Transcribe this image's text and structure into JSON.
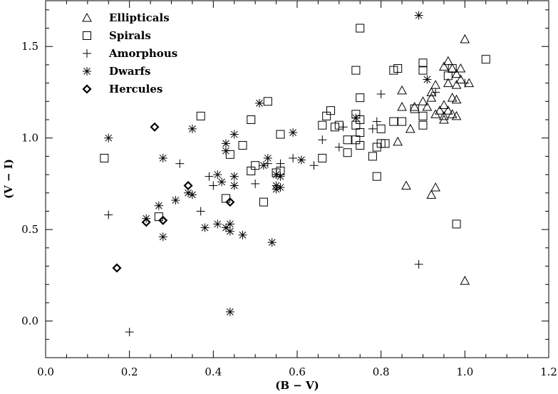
{
  "chart_data": {
    "type": "scatter",
    "xlabel": "(B − V)",
    "ylabel": "(V − I)",
    "xlim": [
      0.0,
      1.2
    ],
    "ylim": [
      -0.2,
      1.75
    ],
    "x_ticks": [
      0.0,
      0.2,
      0.4,
      0.6,
      0.8,
      1.0,
      1.2
    ],
    "x_tick_labels": [
      "0.0",
      "0.2",
      "0.4",
      "0.6",
      "0.8",
      "1.0",
      "1.2"
    ],
    "y_ticks": [
      0.0,
      0.5,
      1.0,
      1.5
    ],
    "y_tick_labels": [
      "0.0",
      "0.5",
      "1.0",
      "1.5"
    ],
    "grid": false,
    "legend_position": "top-left",
    "series": [
      {
        "name": "Ellipticals",
        "marker": "triangle",
        "points": [
          [
            1.0,
            1.54
          ],
          [
            0.96,
            1.42
          ],
          [
            0.97,
            1.38
          ],
          [
            0.98,
            1.35
          ],
          [
            0.95,
            1.39
          ],
          [
            0.99,
            1.38
          ],
          [
            0.96,
            1.3
          ],
          [
            0.99,
            1.32
          ],
          [
            1.01,
            1.3
          ],
          [
            0.98,
            1.29
          ],
          [
            0.93,
            1.29
          ],
          [
            0.92,
            1.25
          ],
          [
            0.92,
            1.22
          ],
          [
            0.97,
            1.22
          ],
          [
            0.98,
            1.21
          ],
          [
            0.95,
            1.18
          ],
          [
            0.96,
            1.15
          ],
          [
            0.94,
            1.15
          ],
          [
            0.93,
            1.13
          ],
          [
            0.95,
            1.12
          ],
          [
            0.95,
            1.1
          ],
          [
            0.97,
            1.13
          ],
          [
            0.98,
            1.12
          ],
          [
            0.9,
            1.2
          ],
          [
            0.91,
            1.17
          ],
          [
            0.88,
            1.17
          ],
          [
            0.87,
            1.05
          ],
          [
            0.85,
            1.26
          ],
          [
            0.85,
            1.17
          ],
          [
            0.84,
            0.98
          ],
          [
            0.86,
            0.74
          ],
          [
            0.92,
            0.69
          ],
          [
            0.93,
            0.73
          ],
          [
            1.0,
            0.22
          ]
        ]
      },
      {
        "name": "Spirals",
        "marker": "square",
        "points": [
          [
            0.75,
            1.6
          ],
          [
            1.05,
            1.43
          ],
          [
            0.9,
            1.41
          ],
          [
            0.9,
            1.37
          ],
          [
            0.84,
            1.38
          ],
          [
            0.83,
            1.37
          ],
          [
            0.74,
            1.37
          ],
          [
            0.97,
            1.38
          ],
          [
            0.96,
            1.34
          ],
          [
            0.88,
            1.16
          ],
          [
            0.85,
            1.09
          ],
          [
            0.83,
            1.09
          ],
          [
            0.75,
            1.22
          ],
          [
            0.74,
            1.13
          ],
          [
            0.75,
            1.1
          ],
          [
            0.74,
            1.07
          ],
          [
            0.69,
            1.06
          ],
          [
            0.68,
            1.15
          ],
          [
            0.7,
            1.07
          ],
          [
            0.67,
            1.12
          ],
          [
            0.66,
            1.07
          ],
          [
            0.75,
            1.03
          ],
          [
            0.72,
            0.99
          ],
          [
            0.74,
            0.99
          ],
          [
            0.75,
            0.96
          ],
          [
            0.72,
            0.92
          ],
          [
            0.79,
            0.95
          ],
          [
            0.8,
            0.97
          ],
          [
            0.81,
            0.97
          ],
          [
            0.8,
            1.05
          ],
          [
            0.78,
            0.9
          ],
          [
            0.79,
            0.79
          ],
          [
            0.9,
            1.07
          ],
          [
            0.9,
            1.12
          ],
          [
            0.53,
            1.2
          ],
          [
            0.49,
            1.1
          ],
          [
            0.37,
            1.12
          ],
          [
            0.14,
            0.89
          ],
          [
            0.47,
            0.96
          ],
          [
            0.44,
            0.91
          ],
          [
            0.49,
            0.82
          ],
          [
            0.5,
            0.85
          ],
          [
            0.55,
            0.81
          ],
          [
            0.56,
            0.82
          ],
          [
            0.56,
            1.02
          ],
          [
            0.43,
            0.67
          ],
          [
            0.52,
            0.65
          ],
          [
            0.66,
            0.89
          ],
          [
            0.27,
            0.57
          ],
          [
            0.98,
            0.53
          ]
        ]
      },
      {
        "name": "Amorphous",
        "marker": "plus",
        "points": [
          [
            0.15,
            0.58
          ],
          [
            0.2,
            -0.06
          ],
          [
            0.32,
            0.86
          ],
          [
            0.39,
            0.79
          ],
          [
            0.4,
            0.74
          ],
          [
            0.37,
            0.6
          ],
          [
            0.5,
            0.75
          ],
          [
            0.53,
            0.86
          ],
          [
            0.56,
            0.86
          ],
          [
            0.59,
            0.89
          ],
          [
            0.64,
            0.85
          ],
          [
            0.66,
            0.99
          ],
          [
            0.7,
            0.95
          ],
          [
            0.71,
            1.06
          ],
          [
            0.78,
            1.05
          ],
          [
            0.8,
            1.24
          ],
          [
            0.79,
            1.09
          ],
          [
            0.93,
            1.25
          ],
          [
            0.89,
            0.31
          ],
          [
            1.0,
            1.3
          ]
        ]
      },
      {
        "name": "Dwarfs",
        "marker": "asterisk",
        "points": [
          [
            0.89,
            1.67
          ],
          [
            0.51,
            1.19
          ],
          [
            0.15,
            1.0
          ],
          [
            0.35,
            1.05
          ],
          [
            0.45,
            1.02
          ],
          [
            0.59,
            1.03
          ],
          [
            0.74,
            1.11
          ],
          [
            0.43,
            0.97
          ],
          [
            0.43,
            0.93
          ],
          [
            0.28,
            0.89
          ],
          [
            0.53,
            0.89
          ],
          [
            0.61,
            0.88
          ],
          [
            0.52,
            0.85
          ],
          [
            0.41,
            0.8
          ],
          [
            0.45,
            0.79
          ],
          [
            0.42,
            0.76
          ],
          [
            0.45,
            0.74
          ],
          [
            0.55,
            0.8
          ],
          [
            0.56,
            0.79
          ],
          [
            0.55,
            0.74
          ],
          [
            0.55,
            0.72
          ],
          [
            0.56,
            0.73
          ],
          [
            0.34,
            0.7
          ],
          [
            0.35,
            0.69
          ],
          [
            0.31,
            0.66
          ],
          [
            0.27,
            0.63
          ],
          [
            0.24,
            0.56
          ],
          [
            0.38,
            0.51
          ],
          [
            0.41,
            0.53
          ],
          [
            0.44,
            0.53
          ],
          [
            0.43,
            0.51
          ],
          [
            0.44,
            0.49
          ],
          [
            0.47,
            0.47
          ],
          [
            0.28,
            0.46
          ],
          [
            0.54,
            0.43
          ],
          [
            0.44,
            0.05
          ],
          [
            0.91,
            1.32
          ]
        ]
      },
      {
        "name": "Hercules",
        "marker": "diamond",
        "points": [
          [
            0.26,
            1.06
          ],
          [
            0.34,
            0.74
          ],
          [
            0.44,
            0.65
          ],
          [
            0.24,
            0.54
          ],
          [
            0.28,
            0.55
          ],
          [
            0.17,
            0.29
          ]
        ]
      }
    ]
  }
}
